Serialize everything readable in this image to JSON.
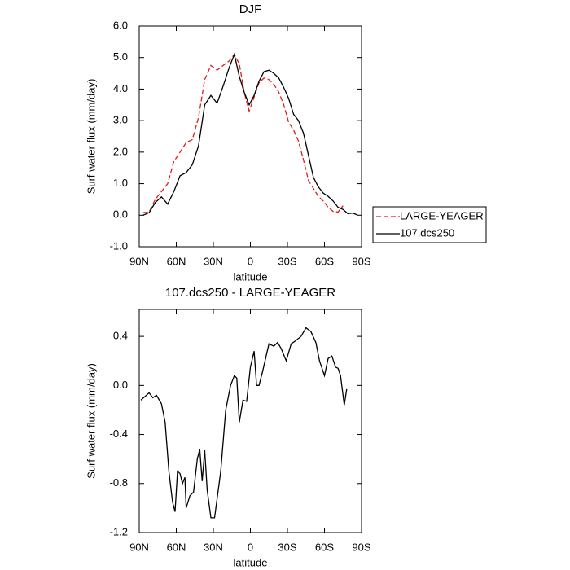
{
  "chart_data": [
    {
      "type": "line",
      "title": "DJF",
      "x_label": "latitude",
      "y_label": "Surf water flux (mm/day)",
      "x": [
        87,
        82,
        77,
        72,
        67,
        62,
        57,
        52,
        47,
        42,
        37,
        32,
        27,
        22,
        17,
        13,
        9,
        5,
        1,
        -3,
        -7,
        -11,
        -15,
        -19,
        -23,
        -27,
        -31,
        -35,
        -39,
        -43,
        -47,
        -51,
        -55,
        -59,
        -63,
        -67,
        -71,
        -75,
        -79,
        -83,
        -87
      ],
      "series": [
        {
          "name": "LARGE-YEAGER",
          "color": "#e41a1c",
          "dash": true,
          "values": [
            0.08,
            0.1,
            0.5,
            0.75,
            1.0,
            1.7,
            2.0,
            2.3,
            2.4,
            3.1,
            4.3,
            4.75,
            4.6,
            4.75,
            4.9,
            5.1,
            4.8,
            3.9,
            3.3,
            3.75,
            4.2,
            4.35,
            4.3,
            4.15,
            3.9,
            3.5,
            2.95,
            2.7,
            2.35,
            1.75,
            1.1,
            0.85,
            0.6,
            0.45,
            0.25,
            0.12,
            0.1,
            0.3,
            null,
            null,
            null
          ]
        },
        {
          "name": "107.dcs250",
          "color": "#000000",
          "dash": false,
          "values": [
            0.0,
            0.08,
            0.4,
            0.58,
            0.35,
            0.75,
            1.25,
            1.35,
            1.6,
            2.2,
            3.5,
            3.8,
            3.55,
            4.1,
            4.7,
            5.1,
            4.4,
            3.9,
            3.5,
            3.8,
            4.25,
            4.55,
            4.6,
            4.5,
            4.35,
            4.05,
            3.7,
            3.2,
            3.0,
            2.6,
            1.9,
            1.2,
            0.9,
            0.7,
            0.6,
            0.45,
            0.25,
            0.18,
            0.05,
            0.07,
            0.0
          ]
        }
      ],
      "xlim": [
        90,
        -90
      ],
      "xticks": [
        {
          "value": 90,
          "label": "90N"
        },
        {
          "value": 60,
          "label": "60N"
        },
        {
          "value": 30,
          "label": "30N"
        },
        0,
        {
          "value": -30,
          "label": "30S"
        },
        {
          "value": -60,
          "label": "60S"
        },
        {
          "value": -90,
          "label": "90S"
        }
      ],
      "ylim": [
        -1,
        6
      ],
      "yticks": [
        {
          "value": -1,
          "label": "-1.0"
        },
        {
          "value": 0,
          "label": "0.0"
        },
        {
          "value": 1,
          "label": "1.0"
        },
        {
          "value": 2,
          "label": "2.0"
        },
        {
          "value": 3,
          "label": "3.0"
        },
        {
          "value": 4,
          "label": "4.0"
        },
        {
          "value": 5,
          "label": "5.0"
        },
        {
          "value": 6,
          "label": "6.0"
        }
      ],
      "legend": "right"
    },
    {
      "type": "line",
      "title": "107.dcs250 - LARGE-YEAGER",
      "x_label": "latitude",
      "y_label": "Surf water flux (mm/day)",
      "x": [
        88.7,
        82,
        79,
        76,
        72,
        69,
        66,
        63,
        61,
        59,
        57,
        55,
        53,
        52,
        49,
        46,
        43,
        41,
        39,
        37,
        35,
        32,
        29,
        24,
        20,
        16,
        13,
        11,
        9,
        6,
        3,
        0,
        -3,
        -5,
        -7,
        -10,
        -15,
        -19,
        -22,
        -25,
        -29,
        -33,
        -36,
        -41,
        -45,
        -49,
        -53,
        -56,
        -60,
        -63,
        -66,
        -69,
        -71,
        -73,
        -76,
        -78
      ],
      "values": [
        -0.12,
        -0.06,
        -0.1,
        -0.08,
        -0.15,
        -0.3,
        -0.7,
        -0.95,
        -1.03,
        -0.7,
        -0.72,
        -0.8,
        -0.75,
        -1.0,
        -0.9,
        -0.87,
        -0.6,
        -0.52,
        -0.78,
        -0.53,
        -0.85,
        -1.08,
        -1.08,
        -0.7,
        -0.2,
        0.0,
        0.08,
        0.06,
        -0.3,
        -0.12,
        -0.13,
        0.15,
        0.28,
        0.0,
        0.0,
        0.12,
        0.34,
        0.32,
        0.35,
        0.3,
        0.2,
        0.34,
        0.36,
        0.4,
        0.47,
        0.44,
        0.35,
        0.2,
        0.08,
        0.22,
        0.24,
        0.15,
        0.14,
        0.08,
        -0.16,
        -0.03
      ],
      "color": "#000000",
      "xlim": [
        90,
        -90
      ],
      "xticks": [
        {
          "value": 90,
          "label": "90N"
        },
        {
          "value": 60,
          "label": "60N"
        },
        {
          "value": 30,
          "label": "30N"
        },
        0,
        {
          "value": -30,
          "label": "30S"
        },
        {
          "value": -60,
          "label": "60S"
        },
        {
          "value": -90,
          "label": "90S"
        }
      ],
      "ylim": [
        -1.2,
        0.62
      ],
      "yticks": [
        -1.2,
        -0.8,
        -0.4,
        {
          "value": 0,
          "label": "0.0"
        },
        0.4
      ]
    }
  ]
}
